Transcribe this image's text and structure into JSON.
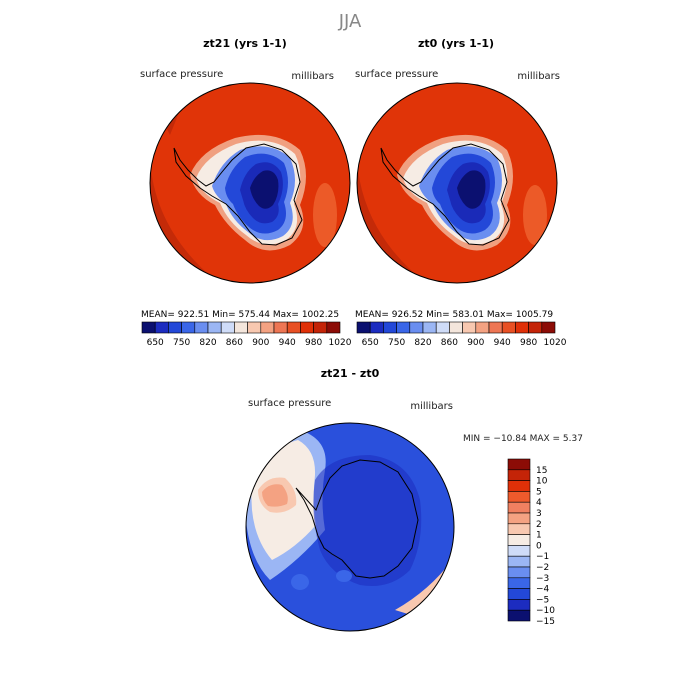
{
  "page_title": "JJA",
  "panels": {
    "left": {
      "title": "zt21 (yrs 1-1)",
      "field": "surface pressure",
      "units": "millibars",
      "stats": "MEAN= 922.51   Min= 575.44   Max= 1002.25"
    },
    "right": {
      "title": "zt0 (yrs 1-1)",
      "field": "surface pressure",
      "units": "millibars",
      "stats": "MEAN= 926.52   Min= 583.01   Max= 1005.79"
    },
    "diff": {
      "title": "zt21 - zt0",
      "field": "surface pressure",
      "units": "millibars",
      "stats": "MIN = −10.84 MAX =    5.37"
    }
  },
  "chart_data": [
    {
      "type": "heatmap",
      "title": "zt21 (yrs 1-1)",
      "variable": "surface pressure",
      "units": "millibars",
      "mean": 922.51,
      "min": 575.44,
      "max": 1002.25,
      "colorbar": {
        "tick_labels": [
          "650",
          "750",
          "820",
          "860",
          "900",
          "940",
          "980",
          "1020"
        ],
        "colors": [
          "#0b1070",
          "#1c2cc0",
          "#2348d8",
          "#3a66e8",
          "#6a8ef0",
          "#9bb6f4",
          "#cfdcf8",
          "#f4e6dc",
          "#f8c8b0",
          "#f4a282",
          "#ee7654",
          "#e85024",
          "#e03008",
          "#c42408",
          "#8c0c06"
        ]
      }
    },
    {
      "type": "heatmap",
      "title": "zt0 (yrs 1-1)",
      "variable": "surface pressure",
      "units": "millibars",
      "mean": 926.52,
      "min": 583.01,
      "max": 1005.79,
      "colorbar": {
        "tick_labels": [
          "650",
          "750",
          "820",
          "860",
          "900",
          "940",
          "980",
          "1020"
        ],
        "colors": [
          "#0b1070",
          "#1c2cc0",
          "#2348d8",
          "#3a66e8",
          "#6a8ef0",
          "#9bb6f4",
          "#cfdcf8",
          "#f4e6dc",
          "#f8c8b0",
          "#f4a282",
          "#ee7654",
          "#e85024",
          "#e03008",
          "#c42408",
          "#8c0c06"
        ]
      }
    },
    {
      "type": "heatmap",
      "title": "zt21 - zt0",
      "variable": "surface pressure",
      "units": "millibars",
      "min": -10.84,
      "max": 5.37,
      "colorbar": {
        "tick_labels": [
          "15",
          "10",
          "5",
          "4",
          "3",
          "2",
          "1",
          "0",
          "−1",
          "−2",
          "−3",
          "−4",
          "−5",
          "−10",
          "−15"
        ],
        "colors": [
          "#8c0c06",
          "#c42408",
          "#e03008",
          "#ee5a2c",
          "#f08060",
          "#f4a282",
          "#f8c8b0",
          "#f6ece4",
          "#cfdcf8",
          "#9bb6f4",
          "#6a8ef0",
          "#3a66e8",
          "#2348d8",
          "#1c2cc0",
          "#0b1070"
        ]
      }
    }
  ]
}
